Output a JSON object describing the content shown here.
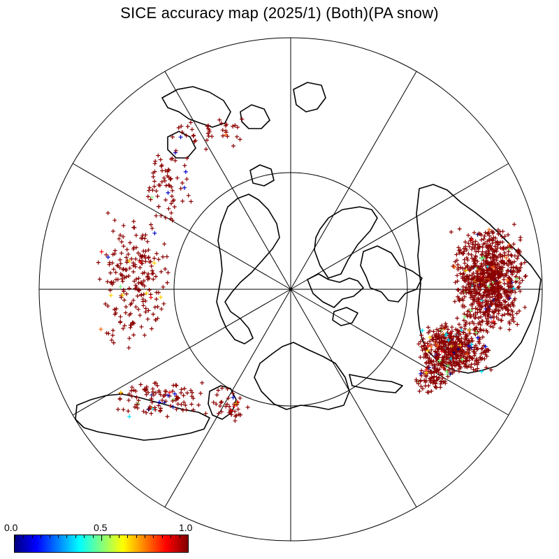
{
  "title": "SICE accuracy map (2025/1) (Both)(PA snow)",
  "colorbar": {
    "min_label": "0.0",
    "mid_label": "0.5",
    "max_label": "1.0",
    "stops": [
      "#000080",
      "#0000ff",
      "#0080ff",
      "#00ffff",
      "#80ff80",
      "#ffff00",
      "#ff8000",
      "#ff0000",
      "#800000"
    ]
  },
  "map": {
    "projection": "north-polar-stereographic",
    "graticule_rings": 2,
    "meridian_count": 12,
    "marker": "plus",
    "dominant_color": "#8b0000"
  }
}
